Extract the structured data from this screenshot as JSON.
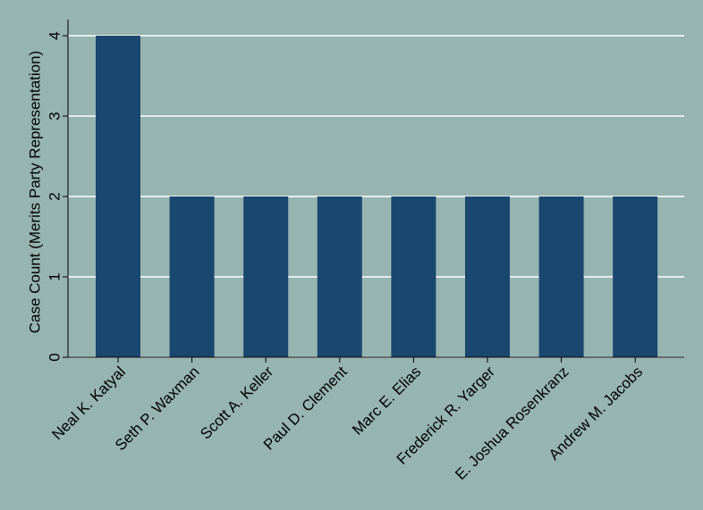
{
  "chart_data": {
    "type": "bar",
    "y_label": "Case Count (Merits Party Representation)",
    "categories": [
      "Neal K. Katyal",
      "Seth P. Waxman",
      "Scott A. Keller",
      "Paul D. Clement",
      "Marc E. Elias",
      "Frederick R. Yarger",
      "E. Joshua Rosenkranz",
      "Andrew M. Jacobs"
    ],
    "values": [
      4,
      2,
      2,
      2,
      2,
      2,
      2,
      2
    ],
    "color": "#1a476f",
    "ylim": [
      0,
      4.2
    ],
    "yticks": [
      0,
      1,
      2,
      3,
      4
    ],
    "grid": true
  }
}
